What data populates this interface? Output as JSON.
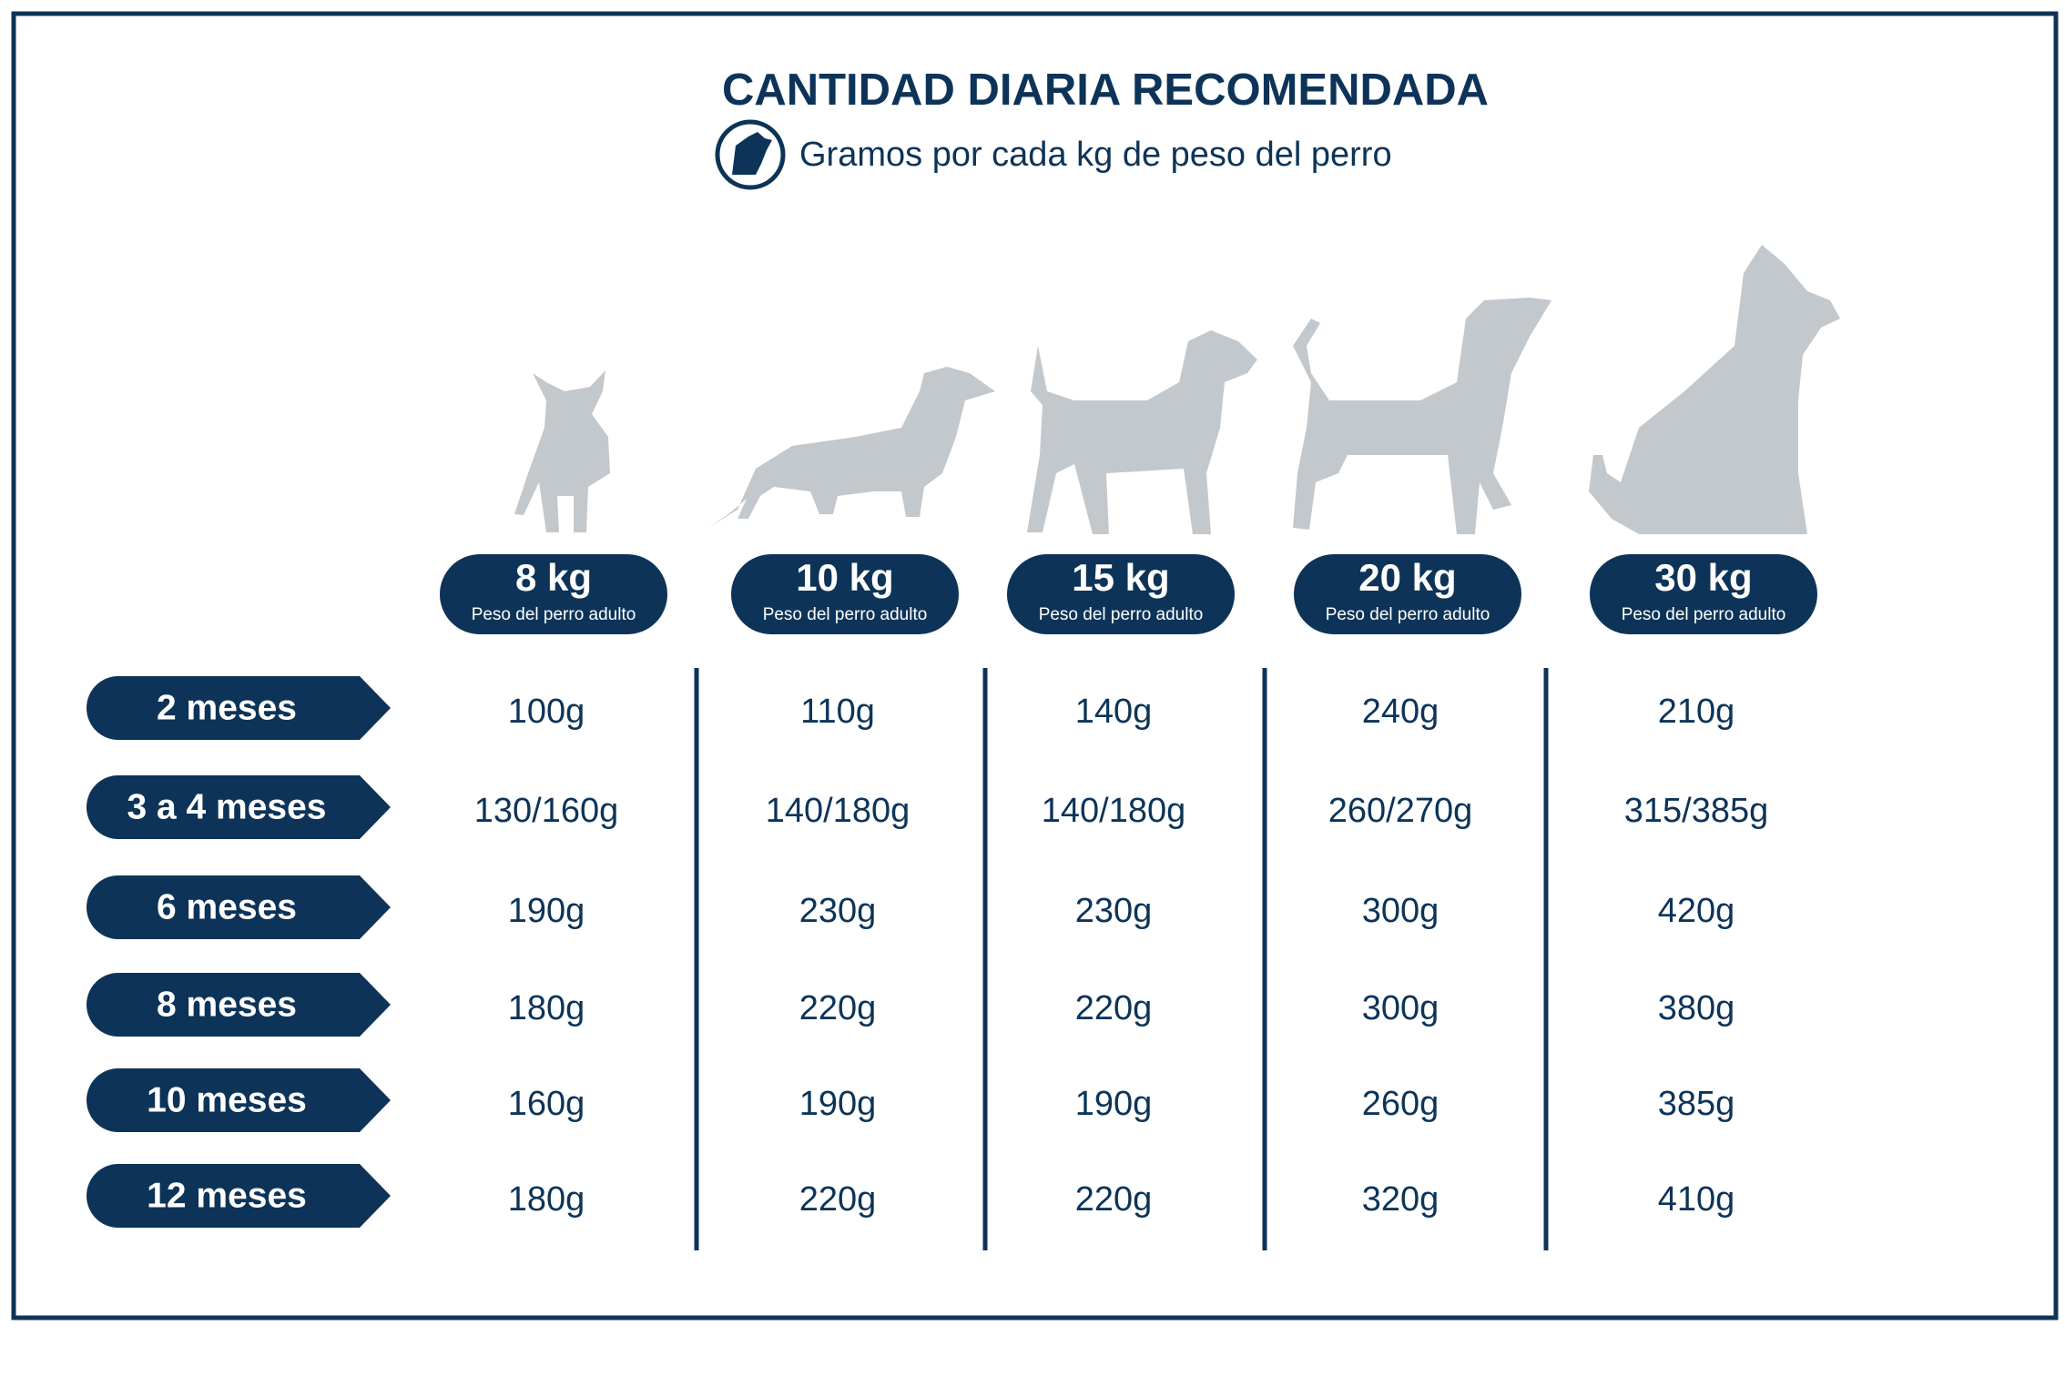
{
  "header": {
    "title": "CANTIDAD DIARIA RECOMENDADA",
    "subtitle": "Gramos por cada kg de peso del perro"
  },
  "columns": [
    {
      "weight": "8 kg",
      "label": "Peso del perro adulto"
    },
    {
      "weight": "10 kg",
      "label": "Peso del perro adulto"
    },
    {
      "weight": "15 kg",
      "label": "Peso del perro adulto"
    },
    {
      "weight": "20 kg",
      "label": "Peso del perro adulto"
    },
    {
      "weight": "30 kg",
      "label": "Peso del perro adulto"
    }
  ],
  "rows": [
    {
      "age": "2 meses",
      "values": [
        "100g",
        "110g",
        "140g",
        "240g",
        "210g"
      ]
    },
    {
      "age": "3 a 4 meses",
      "values": [
        "130/160g",
        "140/180g",
        "140/180g",
        "260/270g",
        "315/385g"
      ]
    },
    {
      "age": "6 meses",
      "values": [
        "190g",
        "230g",
        "230g",
        "300g",
        "420g"
      ]
    },
    {
      "age": "8 meses",
      "values": [
        "180g",
        "220g",
        "220g",
        "300g",
        "380g"
      ]
    },
    {
      "age": "10 meses",
      "values": [
        "160g",
        "190g",
        "190g",
        "260g",
        "385g"
      ]
    },
    {
      "age": "12 meses",
      "values": [
        "180g",
        "220g",
        "220g",
        "320g",
        "410g"
      ]
    }
  ]
}
